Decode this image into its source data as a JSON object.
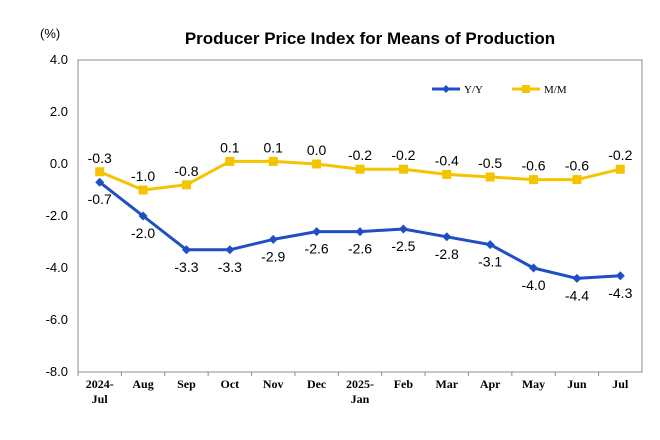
{
  "chart_data": {
    "type": "line",
    "title": "Producer Price Index for Means of Production",
    "ylabel": "(%)",
    "xlabel": "",
    "categories": [
      [
        "2024-",
        "Jul"
      ],
      [
        "Aug"
      ],
      [
        "Sep"
      ],
      [
        "Oct"
      ],
      [
        "Nov"
      ],
      [
        "Dec"
      ],
      [
        "2025-",
        "Jan"
      ],
      [
        "Feb"
      ],
      [
        "Mar"
      ],
      [
        "Apr"
      ],
      [
        "May"
      ],
      [
        "Jun"
      ],
      [
        "Jul"
      ]
    ],
    "ylim": [
      -8.0,
      4.0
    ],
    "yticks": [
      "4.0",
      "2.0",
      "0.0",
      "-2.0",
      "-4.0",
      "-6.0",
      "-8.0"
    ],
    "grid": false,
    "legend_position": "top-right",
    "series": [
      {
        "name": "Y/Y",
        "color": "#1f4fc4",
        "marker": "diamond",
        "values": [
          -0.7,
          -2.0,
          -3.3,
          -3.3,
          -2.9,
          -2.6,
          -2.6,
          -2.5,
          -2.8,
          -3.1,
          -4.0,
          -4.4,
          -4.3
        ],
        "labels": [
          "-0.7",
          "-2.0",
          "-3.3",
          "-3.3",
          "-2.9",
          "-2.6",
          "-2.6",
          "-2.5",
          "-2.8",
          "-3.1",
          "-4.0",
          "-4.4",
          "-4.3"
        ]
      },
      {
        "name": "M/M",
        "color": "#f5c400",
        "marker": "square",
        "values": [
          -0.3,
          -1.0,
          -0.8,
          0.1,
          0.1,
          0.0,
          -0.2,
          -0.2,
          -0.4,
          -0.5,
          -0.6,
          -0.6,
          -0.2
        ],
        "labels": [
          "-0.3",
          "-1.0",
          "-0.8",
          "0.1",
          "0.1",
          "0.0",
          "-0.2",
          "-0.2",
          "-0.4",
          "-0.5",
          "-0.6",
          "-0.6",
          "-0.2"
        ]
      }
    ]
  }
}
